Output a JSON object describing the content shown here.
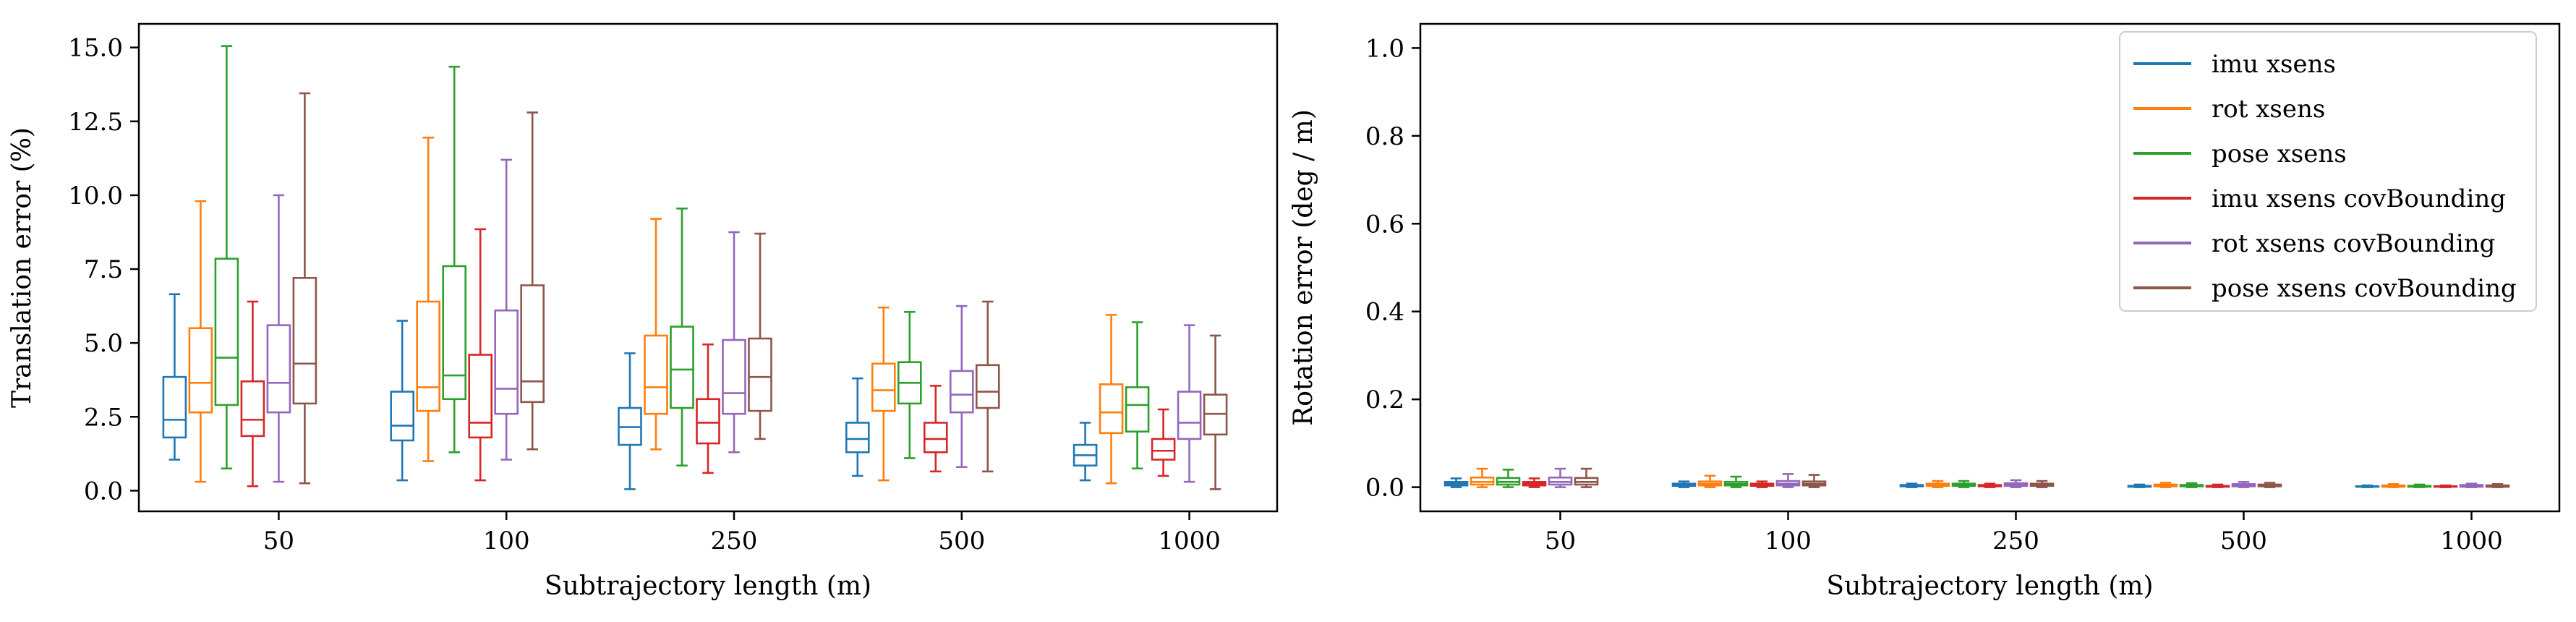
{
  "chart_data": [
    {
      "type": "box",
      "xlabel": "Subtrajectory length (m)",
      "ylabel": "Translation error (%)",
      "categories": [
        "50",
        "100",
        "250",
        "500",
        "1000"
      ],
      "ylim": [
        -0.7,
        15.8
      ],
      "yticks": [
        0.0,
        2.5,
        5.0,
        7.5,
        10.0,
        12.5,
        15.0
      ],
      "ytick_labels": [
        "0.0",
        "2.5",
        "5.0",
        "7.5",
        "10.0",
        "12.5",
        "15.0"
      ],
      "grid": false,
      "series": [
        {
          "name": "imu xsens",
          "color": "#1f77b4",
          "boxes": [
            {
              "whislo": 1.05,
              "q1": 1.8,
              "med": 2.4,
              "q3": 3.85,
              "whishi": 6.65
            },
            {
              "whislo": 0.35,
              "q1": 1.7,
              "med": 2.2,
              "q3": 3.35,
              "whishi": 5.75
            },
            {
              "whislo": 0.05,
              "q1": 1.55,
              "med": 2.15,
              "q3": 2.8,
              "whishi": 4.65
            },
            {
              "whislo": 0.5,
              "q1": 1.3,
              "med": 1.75,
              "q3": 2.3,
              "whishi": 3.8
            },
            {
              "whislo": 0.35,
              "q1": 0.85,
              "med": 1.2,
              "q3": 1.55,
              "whishi": 2.3
            }
          ]
        },
        {
          "name": "rot xsens",
          "color": "#ff7f0e",
          "boxes": [
            {
              "whislo": 0.3,
              "q1": 2.65,
              "med": 3.65,
              "q3": 5.5,
              "whishi": 9.8
            },
            {
              "whislo": 1.0,
              "q1": 2.7,
              "med": 3.5,
              "q3": 6.4,
              "whishi": 11.95
            },
            {
              "whislo": 1.4,
              "q1": 2.6,
              "med": 3.5,
              "q3": 5.25,
              "whishi": 9.2
            },
            {
              "whislo": 0.35,
              "q1": 2.7,
              "med": 3.4,
              "q3": 4.3,
              "whishi": 6.2
            },
            {
              "whislo": 0.25,
              "q1": 1.95,
              "med": 2.65,
              "q3": 3.6,
              "whishi": 5.95
            }
          ]
        },
        {
          "name": "pose xsens",
          "color": "#2ca02c",
          "boxes": [
            {
              "whislo": 0.75,
              "q1": 2.9,
              "med": 4.5,
              "q3": 7.85,
              "whishi": 15.05
            },
            {
              "whislo": 1.3,
              "q1": 3.1,
              "med": 3.9,
              "q3": 7.6,
              "whishi": 14.35
            },
            {
              "whislo": 0.85,
              "q1": 2.8,
              "med": 4.1,
              "q3": 5.55,
              "whishi": 9.55
            },
            {
              "whislo": 1.1,
              "q1": 2.95,
              "med": 3.65,
              "q3": 4.35,
              "whishi": 6.05
            },
            {
              "whislo": 0.75,
              "q1": 2.0,
              "med": 2.9,
              "q3": 3.5,
              "whishi": 5.7
            }
          ]
        },
        {
          "name": "imu xsens covBounding",
          "color": "#d62728",
          "boxes": [
            {
              "whislo": 0.15,
              "q1": 1.85,
              "med": 2.4,
              "q3": 3.7,
              "whishi": 6.4
            },
            {
              "whislo": 0.35,
              "q1": 1.8,
              "med": 2.3,
              "q3": 4.6,
              "whishi": 8.85
            },
            {
              "whislo": 0.6,
              "q1": 1.6,
              "med": 2.3,
              "q3": 3.1,
              "whishi": 4.95
            },
            {
              "whislo": 0.65,
              "q1": 1.3,
              "med": 1.75,
              "q3": 2.3,
              "whishi": 3.55
            },
            {
              "whislo": 0.5,
              "q1": 1.05,
              "med": 1.35,
              "q3": 1.75,
              "whishi": 2.75
            }
          ]
        },
        {
          "name": "rot xsens covBounding",
          "color": "#9467bd",
          "boxes": [
            {
              "whislo": 0.3,
              "q1": 2.65,
              "med": 3.65,
              "q3": 5.6,
              "whishi": 10.0
            },
            {
              "whislo": 1.05,
              "q1": 2.6,
              "med": 3.45,
              "q3": 6.1,
              "whishi": 11.2
            },
            {
              "whislo": 1.3,
              "q1": 2.6,
              "med": 3.3,
              "q3": 5.1,
              "whishi": 8.75
            },
            {
              "whislo": 0.8,
              "q1": 2.65,
              "med": 3.25,
              "q3": 4.05,
              "whishi": 6.25
            },
            {
              "whislo": 0.3,
              "q1": 1.75,
              "med": 2.3,
              "q3": 3.35,
              "whishi": 5.6
            }
          ]
        },
        {
          "name": "pose xsens covBounding",
          "color": "#8c564b",
          "boxes": [
            {
              "whislo": 0.25,
              "q1": 2.95,
              "med": 4.3,
              "q3": 7.2,
              "whishi": 13.45
            },
            {
              "whislo": 1.4,
              "q1": 3.0,
              "med": 3.7,
              "q3": 6.95,
              "whishi": 12.8
            },
            {
              "whislo": 1.75,
              "q1": 2.7,
              "med": 3.85,
              "q3": 5.15,
              "whishi": 8.7
            },
            {
              "whislo": 0.65,
              "q1": 2.8,
              "med": 3.35,
              "q3": 4.25,
              "whishi": 6.4
            },
            {
              "whislo": 0.05,
              "q1": 1.9,
              "med": 2.6,
              "q3": 3.25,
              "whishi": 5.25
            }
          ]
        }
      ]
    },
    {
      "type": "box",
      "xlabel": "Subtrajectory length (m)",
      "ylabel": "Rotation error (deg / m)",
      "categories": [
        "50",
        "100",
        "250",
        "500",
        "1000"
      ],
      "ylim": [
        -0.055,
        1.055
      ],
      "yticks": [
        0.0,
        0.2,
        0.4,
        0.6,
        0.8,
        1.0
      ],
      "ytick_labels": [
        "0.0",
        "0.2",
        "0.4",
        "0.6",
        "0.8",
        "1.0"
      ],
      "grid": false,
      "legend": "top-right",
      "series": [
        {
          "name": "imu xsens",
          "color": "#1f77b4",
          "boxes": [
            {
              "whislo": 0.0,
              "q1": 0.004,
              "med": 0.008,
              "q3": 0.012,
              "whishi": 0.02
            },
            {
              "whislo": 0.0,
              "q1": 0.003,
              "med": 0.005,
              "q3": 0.008,
              "whishi": 0.013
            },
            {
              "whislo": 0.0,
              "q1": 0.002,
              "med": 0.003,
              "q3": 0.005,
              "whishi": 0.008
            },
            {
              "whislo": 0.0,
              "q1": 0.001,
              "med": 0.002,
              "q3": 0.003,
              "whishi": 0.006
            },
            {
              "whislo": 0.0,
              "q1": 0.001,
              "med": 0.002,
              "q3": 0.002,
              "whishi": 0.004
            }
          ]
        },
        {
          "name": "rot xsens",
          "color": "#ff7f0e",
          "boxes": [
            {
              "whislo": 0.0,
              "q1": 0.006,
              "med": 0.012,
              "q3": 0.022,
              "whishi": 0.042
            },
            {
              "whislo": 0.0,
              "q1": 0.004,
              "med": 0.008,
              "q3": 0.013,
              "whishi": 0.026
            },
            {
              "whislo": 0.0,
              "q1": 0.003,
              "med": 0.005,
              "q3": 0.008,
              "whishi": 0.014
            },
            {
              "whislo": 0.0,
              "q1": 0.002,
              "med": 0.004,
              "q3": 0.006,
              "whishi": 0.01
            },
            {
              "whislo": 0.0,
              "q1": 0.001,
              "med": 0.002,
              "q3": 0.004,
              "whishi": 0.007
            }
          ]
        },
        {
          "name": "pose xsens",
          "color": "#2ca02c",
          "boxes": [
            {
              "whislo": 0.0,
              "q1": 0.006,
              "med": 0.012,
              "q3": 0.021,
              "whishi": 0.04
            },
            {
              "whislo": 0.0,
              "q1": 0.004,
              "med": 0.007,
              "q3": 0.012,
              "whishi": 0.024
            },
            {
              "whislo": 0.0,
              "q1": 0.003,
              "med": 0.005,
              "q3": 0.008,
              "whishi": 0.014
            },
            {
              "whislo": 0.0,
              "q1": 0.002,
              "med": 0.003,
              "q3": 0.005,
              "whishi": 0.009
            },
            {
              "whislo": 0.0,
              "q1": 0.001,
              "med": 0.002,
              "q3": 0.003,
              "whishi": 0.006
            }
          ]
        },
        {
          "name": "imu xsens covBounding",
          "color": "#d62728",
          "boxes": [
            {
              "whislo": 0.0,
              "q1": 0.004,
              "med": 0.008,
              "q3": 0.012,
              "whishi": 0.02
            },
            {
              "whislo": 0.0,
              "q1": 0.003,
              "med": 0.005,
              "q3": 0.008,
              "whishi": 0.013
            },
            {
              "whislo": 0.0,
              "q1": 0.002,
              "med": 0.003,
              "q3": 0.005,
              "whishi": 0.008
            },
            {
              "whislo": 0.0,
              "q1": 0.001,
              "med": 0.002,
              "q3": 0.003,
              "whishi": 0.006
            },
            {
              "whislo": 0.0,
              "q1": 0.001,
              "med": 0.002,
              "q3": 0.002,
              "whishi": 0.004
            }
          ]
        },
        {
          "name": "rot xsens covBounding",
          "color": "#9467bd",
          "boxes": [
            {
              "whislo": 0.0,
              "q1": 0.006,
              "med": 0.012,
              "q3": 0.022,
              "whishi": 0.042
            },
            {
              "whislo": 0.0,
              "q1": 0.004,
              "med": 0.008,
              "q3": 0.014,
              "whishi": 0.03
            },
            {
              "whislo": 0.0,
              "q1": 0.003,
              "med": 0.006,
              "q3": 0.009,
              "whishi": 0.016
            },
            {
              "whislo": 0.0,
              "q1": 0.002,
              "med": 0.004,
              "q3": 0.007,
              "whishi": 0.012
            },
            {
              "whislo": 0.0,
              "q1": 0.001,
              "med": 0.003,
              "q3": 0.005,
              "whishi": 0.008
            }
          ]
        },
        {
          "name": "pose xsens covBounding",
          "color": "#8c564b",
          "boxes": [
            {
              "whislo": 0.0,
              "q1": 0.006,
              "med": 0.012,
              "q3": 0.021,
              "whishi": 0.042
            },
            {
              "whislo": 0.0,
              "q1": 0.004,
              "med": 0.008,
              "q3": 0.013,
              "whishi": 0.028
            },
            {
              "whislo": 0.0,
              "q1": 0.003,
              "med": 0.005,
              "q3": 0.008,
              "whishi": 0.014
            },
            {
              "whislo": 0.0,
              "q1": 0.002,
              "med": 0.004,
              "q3": 0.006,
              "whishi": 0.01
            },
            {
              "whislo": 0.0,
              "q1": 0.001,
              "med": 0.002,
              "q3": 0.004,
              "whishi": 0.007
            }
          ]
        }
      ]
    }
  ]
}
